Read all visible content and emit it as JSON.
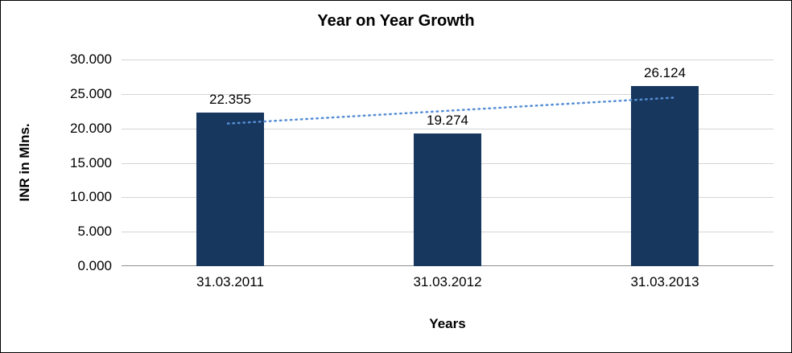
{
  "chart_data": {
    "type": "bar",
    "title": "Year on Year Growth",
    "xlabel": "Years",
    "ylabel": "INR in Mlns.",
    "categories": [
      "31.03.2011",
      "31.03.2012",
      "31.03.2013"
    ],
    "values": [
      22.355,
      19.274,
      26.124
    ],
    "data_labels": [
      "22.355",
      "19.274",
      "26.124"
    ],
    "ylim": [
      0,
      30
    ],
    "ytick_values": [
      30,
      25,
      20,
      15,
      10,
      5,
      0
    ],
    "ytick_labels": [
      "30.000",
      "25.000",
      "20.000",
      "15.000",
      "10.000",
      "5.000",
      "0.000"
    ],
    "grid": true,
    "legend": "none",
    "bar_color": "#17375E",
    "gridline_color": "#d4d4d4",
    "trendline": {
      "style": "dotted",
      "color": "#558ED5",
      "start_value": 20.7,
      "end_value": 24.47
    }
  }
}
